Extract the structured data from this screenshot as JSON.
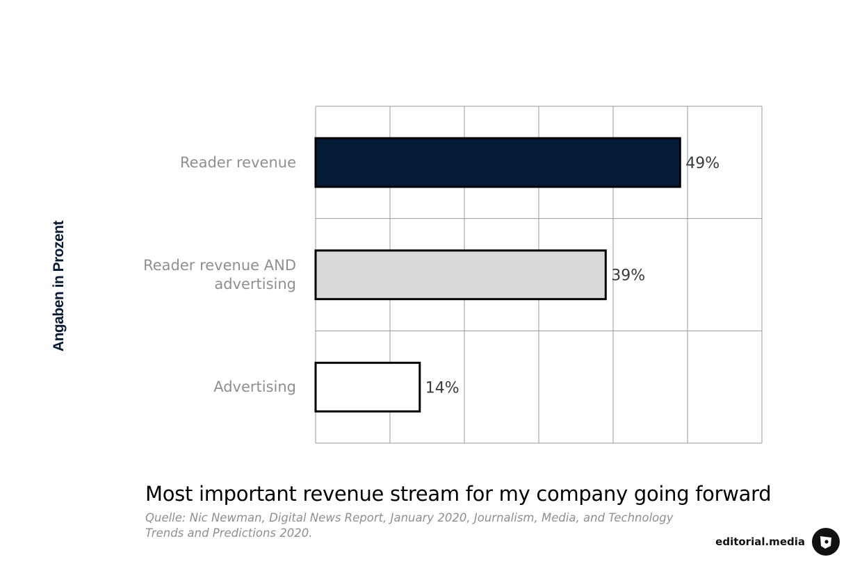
{
  "chart_data": {
    "type": "bar",
    "orientation": "horizontal",
    "title": "Most important revenue stream for my company going forward",
    "ylabel": "Angaben in Prozent",
    "categories": [
      "Reader revenue",
      "Reader revenue AND advertising",
      "Advertising"
    ],
    "values": [
      49,
      39,
      14
    ],
    "value_labels": [
      "49%",
      "39%",
      "14%"
    ],
    "bar_colors": [
      "#031b37",
      "#d9d9d9",
      "#ffffff"
    ],
    "xlim": [
      0,
      60
    ],
    "grid": true,
    "x_gridlines": [
      0,
      10,
      20,
      30,
      40,
      50,
      60
    ],
    "category_label_lines": [
      [
        "Reader revenue"
      ],
      [
        "Reader revenue AND",
        "advertising"
      ],
      [
        "Advertising"
      ]
    ]
  },
  "source": {
    "text_line1": "Quelle: Nic Newman, Digital News Report, January 2020, Journalism, Media, and Technology",
    "text_line2": "Trends and Predictions 2020."
  },
  "brand": {
    "name": "editorial.media",
    "icon": "editorial-media-logo-icon"
  }
}
